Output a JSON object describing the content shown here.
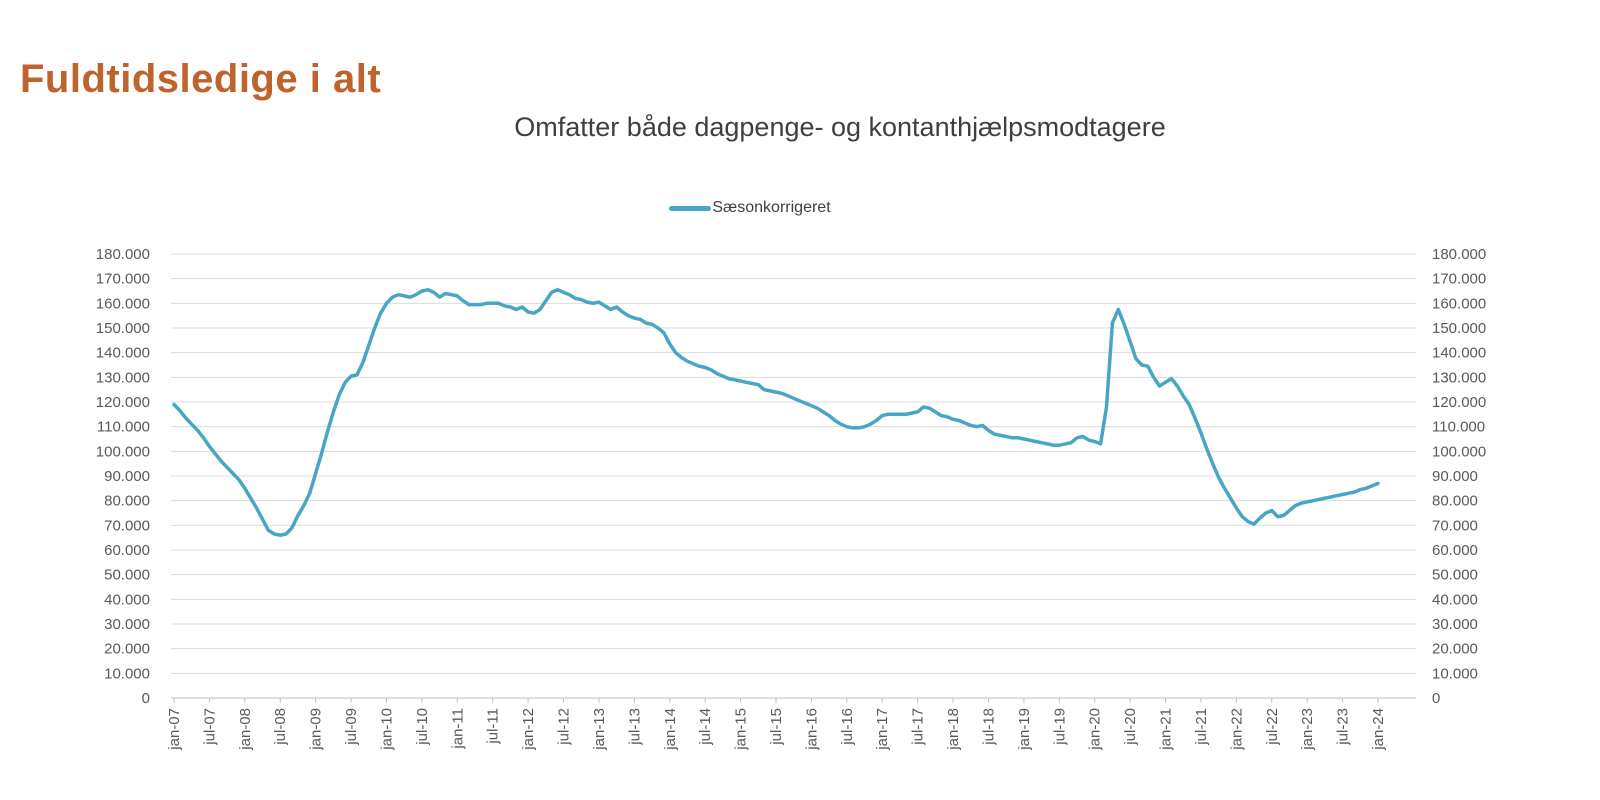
{
  "header": {
    "title": "Fuldtidsledige i alt",
    "title_color": "#C0622B"
  },
  "chart_data": {
    "type": "line",
    "title": "Omfatter både dagpenge- og kontanthjælpsmodtagere",
    "legend_position": "top-center",
    "grid": true,
    "ylim": [
      0,
      180000
    ],
    "y_step": 10000,
    "y_tick_labels": [
      "0",
      "10.000",
      "20.000",
      "30.000",
      "40.000",
      "50.000",
      "60.000",
      "70.000",
      "80.000",
      "90.000",
      "100.000",
      "110.000",
      "120.000",
      "130.000",
      "140.000",
      "150.000",
      "160.000",
      "170.000",
      "180.000"
    ],
    "x_tick_interval_months": 6,
    "x_tick_labels": [
      "jan-07",
      "jul-07",
      "jan-08",
      "jul-08",
      "jan-09",
      "jul-09",
      "jan-10",
      "jul-10",
      "jan-11",
      "jul-11",
      "jan-12",
      "jul-12",
      "jan-13",
      "jul-13",
      "jan-14",
      "jul-14",
      "jan-15",
      "jul-15",
      "jan-16",
      "jul-16",
      "jan-17",
      "jul-17",
      "jan-18",
      "jul-18",
      "jan-19",
      "jul-19",
      "jan-20",
      "jul-20",
      "jan-21",
      "jul-21",
      "jan-22",
      "jul-22",
      "jan-23",
      "jul-23",
      "jan-24"
    ],
    "series": [
      {
        "name": "Sæsonkorrigeret",
        "color": "#47A6C3",
        "values": [
          119000,
          116500,
          113500,
          111000,
          108500,
          105500,
          102000,
          99000,
          96000,
          93500,
          91000,
          88500,
          85000,
          81000,
          77000,
          72500,
          68000,
          66500,
          66000,
          66500,
          69000,
          74000,
          78000,
          83000,
          91000,
          99000,
          108000,
          116000,
          123000,
          128000,
          130500,
          131000,
          136000,
          143000,
          150000,
          156000,
          160000,
          162500,
          163500,
          163000,
          162500,
          163500,
          165000,
          165500,
          164500,
          162500,
          164000,
          163500,
          163000,
          161000,
          159500,
          159500,
          159500,
          160000,
          160000,
          160000,
          159000,
          158500,
          157500,
          158500,
          156500,
          156000,
          157500,
          161000,
          164500,
          165500,
          164500,
          163500,
          162000,
          161500,
          160500,
          160000,
          160500,
          159000,
          157500,
          158500,
          156500,
          155000,
          154000,
          153500,
          152000,
          151500,
          150000,
          148000,
          143500,
          140000,
          138000,
          136500,
          135500,
          134500,
          134000,
          133000,
          131500,
          130500,
          129500,
          129000,
          128500,
          128000,
          127500,
          127000,
          125000,
          124500,
          124000,
          123500,
          122500,
          121500,
          120500,
          119500,
          118500,
          117500,
          116000,
          114500,
          112500,
          111000,
          110000,
          109500,
          109500,
          110000,
          111000,
          112500,
          114500,
          115000,
          115000,
          115000,
          115000,
          115500,
          116000,
          118000,
          117500,
          116000,
          114500,
          114000,
          113000,
          112500,
          111500,
          110500,
          110000,
          110500,
          108500,
          107000,
          106500,
          106000,
          105500,
          105500,
          105000,
          104500,
          104000,
          103500,
          103000,
          102500,
          102500,
          103000,
          103500,
          105500,
          106000,
          104500,
          104000,
          103000,
          118000,
          152000,
          157500,
          151500,
          144500,
          137500,
          135000,
          134500,
          130000,
          126500,
          128000,
          129500,
          126500,
          122500,
          119000,
          113500,
          107500,
          101000,
          95000,
          89500,
          85000,
          81000,
          77000,
          73500,
          71500,
          70500,
          73000,
          75000,
          76000,
          73500,
          74000,
          76000,
          78000,
          79000,
          79500,
          80000,
          80500,
          81000,
          81500,
          82000,
          82500,
          83000,
          83500,
          84500,
          85000,
          86000,
          87000
        ]
      }
    ],
    "colors": {
      "subtitle": "#3F3F3F",
      "legend_text": "#404040",
      "gridline": "#DCDCDC",
      "axis": "#BFBFBF",
      "tick_label": "#595959"
    }
  }
}
